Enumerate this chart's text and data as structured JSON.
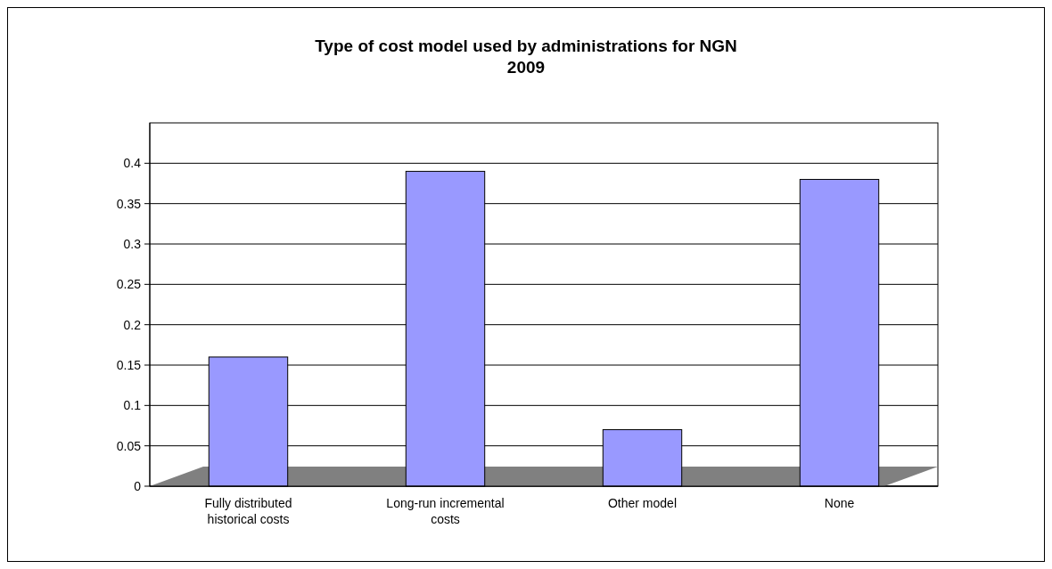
{
  "chart_data": {
    "type": "bar",
    "title": "Type of cost model used by administrations for NGN\n2009",
    "categories": [
      "Fully distributed historical costs",
      "Long-run incremental costs",
      "Other model",
      "None"
    ],
    "values": [
      0.16,
      0.39,
      0.07,
      0.38
    ],
    "color": "#9999ff",
    "ylim": [
      0,
      0.45
    ],
    "yticks": [
      0,
      0.05,
      0.1,
      0.15,
      0.2,
      0.25,
      0.3,
      0.35,
      0.4
    ],
    "grid": "y"
  }
}
